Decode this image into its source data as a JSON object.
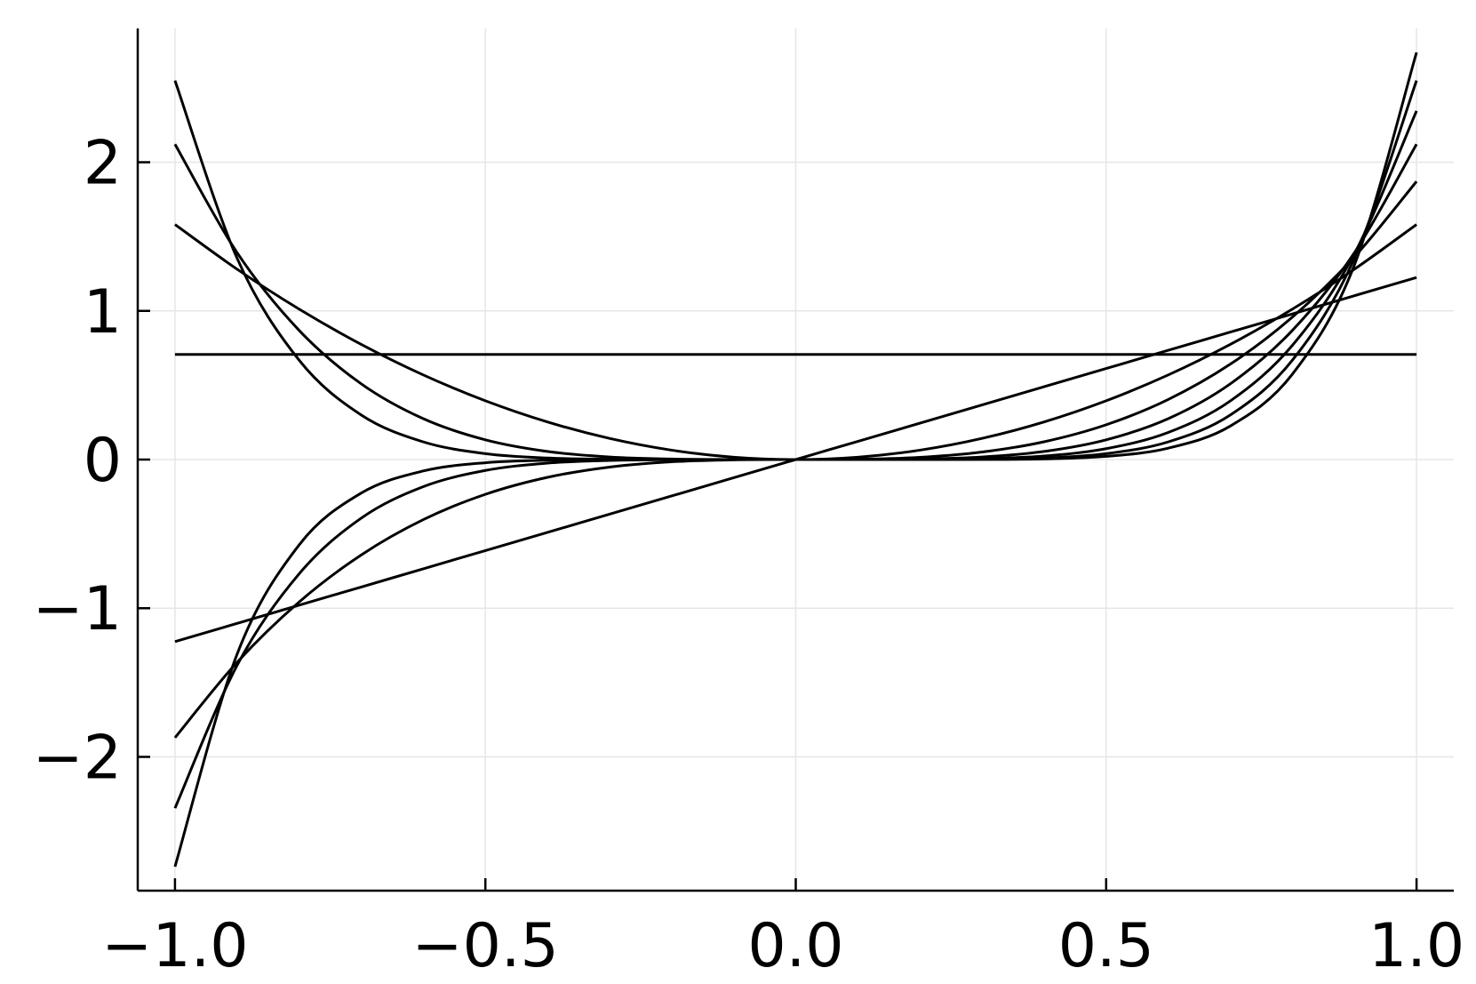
{
  "chart_data": {
    "type": "line",
    "title": "",
    "xlabel": "",
    "ylabel": "",
    "xlim": [
      -1.06,
      1.06
    ],
    "ylim": [
      -2.9,
      2.9
    ],
    "grid": true,
    "legend": "none",
    "x_ticks": [
      {
        "value": -1.0,
        "label": "−1.0"
      },
      {
        "value": -0.5,
        "label": "−0.5"
      },
      {
        "value": 0.0,
        "label": "0.0"
      },
      {
        "value": 0.5,
        "label": "0.5"
      },
      {
        "value": 1.0,
        "label": "1.0"
      }
    ],
    "y_ticks": [
      {
        "value": -2,
        "label": "−2"
      },
      {
        "value": -1,
        "label": "−1"
      },
      {
        "value": 0,
        "label": "0"
      },
      {
        "value": 1,
        "label": "1"
      },
      {
        "value": 2,
        "label": "2"
      }
    ],
    "x": [
      -1.0,
      -0.9,
      -0.8,
      -0.7,
      -0.6,
      -0.5,
      -0.4,
      -0.3,
      -0.2,
      -0.1,
      0.0,
      0.1,
      0.2,
      0.3,
      0.4,
      0.5,
      0.6,
      0.7,
      0.8,
      0.9,
      1.0
    ],
    "series": [
      {
        "values": [
          0.7071,
          0.7071,
          0.7071,
          0.7071,
          0.7071,
          0.7071,
          0.7071,
          0.7071,
          0.7071,
          0.7071,
          0.7071,
          0.7071,
          0.7071,
          0.7071,
          0.7071,
          0.7071,
          0.7071,
          0.7071,
          0.7071,
          0.7071,
          0.7071
        ]
      },
      {
        "values": [
          -1.2247,
          -1.1023,
          -0.9798,
          -0.8573,
          -0.7348,
          -0.6124,
          -0.4899,
          -0.3674,
          -0.2449,
          -0.1225,
          0.0,
          0.1225,
          0.2449,
          0.3674,
          0.4899,
          0.6124,
          0.7348,
          0.8573,
          0.9798,
          1.1023,
          1.2247
        ]
      },
      {
        "values": [
          1.5811,
          1.2807,
          1.0119,
          0.7747,
          0.5692,
          0.3953,
          0.253,
          0.1423,
          0.0632,
          0.0158,
          0.0,
          0.0158,
          0.0632,
          0.1423,
          0.253,
          0.3953,
          0.5692,
          0.7747,
          1.0119,
          1.2807,
          1.5811
        ]
      },
      {
        "values": [
          -1.8708,
          -1.3638,
          -0.9579,
          -0.6417,
          -0.4041,
          -0.2339,
          -0.1197,
          -0.0505,
          -0.015,
          -0.0019,
          0.0,
          0.0019,
          0.015,
          0.0505,
          0.1197,
          0.2339,
          0.4041,
          0.6417,
          0.9579,
          1.3638,
          1.8708
        ]
      },
      {
        "values": [
          2.1213,
          1.3918,
          0.8689,
          0.5093,
          0.2749,
          0.1326,
          0.0543,
          0.0172,
          0.0034,
          0.0002,
          0.0,
          0.0002,
          0.0034,
          0.0172,
          0.0543,
          0.1326,
          0.2749,
          0.5093,
          0.8689,
          1.3918,
          2.1213
        ]
      },
      {
        "values": [
          -2.3452,
          -1.3848,
          -0.7685,
          -0.3942,
          -0.1824,
          -0.0733,
          -0.024,
          -0.0057,
          -0.0008,
          0.0,
          0.0,
          0.0,
          0.0008,
          0.0057,
          0.024,
          0.0733,
          0.1824,
          0.3942,
          0.7685,
          1.3848,
          2.3452
        ]
      },
      {
        "values": [
          2.5495,
          1.3547,
          0.6683,
          0.2999,
          0.1189,
          0.0398,
          0.0104,
          0.0019,
          0.0002,
          0.0,
          0.0,
          0.0,
          0.0002,
          0.0019,
          0.0104,
          0.0398,
          0.1189,
          0.2999,
          0.6683,
          1.3547,
          2.5495
        ]
      },
      {
        "values": [
          -2.7386,
          -1.3098,
          -0.5743,
          -0.2255,
          -0.0767,
          -0.0214,
          -0.0045,
          -0.0006,
          0.0,
          0.0,
          0.0,
          0.0,
          0.0,
          0.0006,
          0.0045,
          0.0214,
          0.0767,
          0.2255,
          0.5743,
          1.3098,
          2.7386
        ]
      }
    ]
  }
}
